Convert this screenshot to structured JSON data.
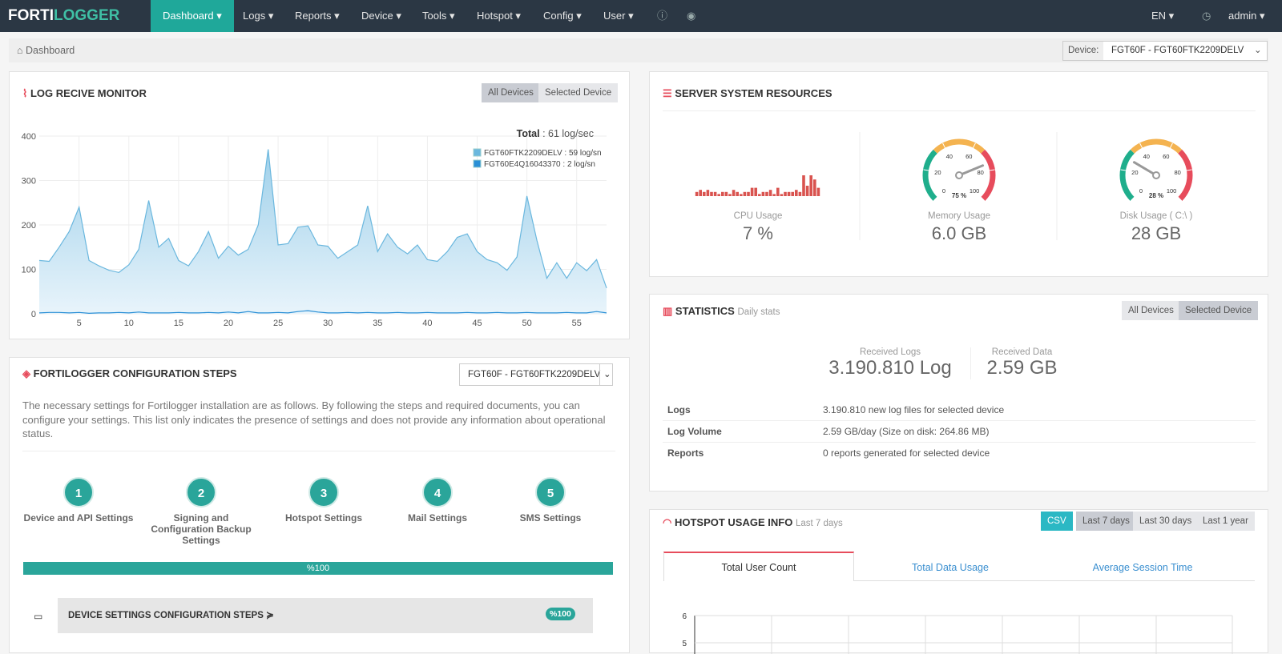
{
  "navbar": {
    "brand": [
      "FORTI",
      "LOGGER"
    ],
    "menu": [
      "Dashboard",
      "Logs",
      "Reports",
      "Device",
      "Tools",
      "Hotspot",
      "Config",
      "User"
    ],
    "language": "EN",
    "user": "admin"
  },
  "breadcrumb": "Dashboard",
  "device_filter": {
    "label": "Device:",
    "value": "FGT60F - FGT60FTK2209DELV"
  },
  "log_monitor": {
    "title": "LOG RECIVE MONITOR",
    "buttons": [
      "All Devices",
      "Selected Device"
    ],
    "total_label": "Total",
    "total_value": ": 61 log/sec",
    "chart_data": {
      "type": "area",
      "x": [
        1,
        2,
        3,
        4,
        5,
        6,
        7,
        8,
        9,
        10,
        11,
        12,
        13,
        14,
        15,
        16,
        17,
        18,
        19,
        20,
        21,
        22,
        23,
        24,
        25,
        26,
        27,
        28,
        29,
        30,
        31,
        32,
        33,
        34,
        35,
        36,
        37,
        38,
        39,
        40,
        41,
        42,
        43,
        44,
        45,
        46,
        47,
        48,
        49,
        50,
        51,
        52,
        53,
        54,
        55,
        56,
        57,
        58
      ],
      "series": [
        {
          "name": "FGT60FTK2209DELV : 59 log/sn",
          "color": "#6ab7de",
          "values": [
            120,
            118,
            150,
            185,
            240,
            120,
            108,
            98,
            93,
            110,
            145,
            255,
            150,
            170,
            120,
            108,
            140,
            185,
            125,
            152,
            132,
            145,
            200,
            370,
            155,
            158,
            195,
            198,
            155,
            152,
            125,
            140,
            155,
            243,
            140,
            180,
            150,
            135,
            155,
            122,
            118,
            140,
            172,
            180,
            140,
            122,
            115,
            98,
            128,
            265,
            165,
            80,
            115,
            80,
            115,
            97,
            122,
            58
          ]
        },
        {
          "name": "FGT60E4Q16043370 : 2 log/sn",
          "color": "#2a8fd6",
          "values": [
            2,
            3,
            3,
            2,
            3,
            1,
            2,
            2,
            3,
            2,
            4,
            2,
            2,
            2,
            3,
            2,
            2,
            3,
            2,
            4,
            2,
            5,
            2,
            2,
            3,
            2,
            5,
            7,
            4,
            2,
            2,
            3,
            2,
            3,
            2,
            2,
            3,
            2,
            2,
            3,
            2,
            2,
            2,
            3,
            2,
            2,
            3,
            2,
            2,
            3,
            2,
            2,
            2,
            3,
            2,
            2,
            5,
            2
          ]
        }
      ],
      "xlim": [
        1,
        58
      ],
      "xticks": [
        5,
        10,
        15,
        20,
        25,
        30,
        35,
        40,
        45,
        50,
        55
      ],
      "ylim": [
        0,
        400
      ],
      "yticks": [
        0,
        100,
        200,
        300,
        400
      ],
      "grid": true
    }
  },
  "system_resources": {
    "title": "SERVER SYSTEM RESOURCES",
    "cpu": {
      "chart_data": {
        "type": "bar",
        "values": [
          2,
          3,
          2,
          3,
          2,
          2,
          1,
          2,
          2,
          1,
          3,
          2,
          1,
          2,
          2,
          4,
          4,
          1,
          2,
          2,
          3,
          1,
          4,
          1,
          2,
          2,
          2,
          3,
          2,
          10,
          5,
          10,
          8,
          4
        ],
        "color": "#d9534f"
      },
      "label": "CPU Usage",
      "value": "7 %"
    },
    "memory": {
      "chart_data": {
        "type": "gauge",
        "value": 75,
        "value_label": "75 %",
        "lim": [
          0,
          100
        ],
        "ticks": [
          0,
          20,
          40,
          60,
          80,
          100
        ],
        "colors": [
          "#1fae8c",
          "#f4b350",
          "#e74c5c"
        ]
      },
      "label": "Memory Usage",
      "value": "6.0 GB"
    },
    "disk": {
      "chart_data": {
        "type": "gauge",
        "value": 28,
        "value_label": "28 %",
        "lim": [
          0,
          100
        ],
        "ticks": [
          0,
          20,
          40,
          60,
          80,
          100
        ],
        "colors": [
          "#1fae8c",
          "#f4b350",
          "#e74c5c"
        ]
      },
      "label": "Disk Usage ( C:\\ )",
      "value": "28 GB"
    }
  },
  "statistics": {
    "title": "STATISTICS",
    "subtitle": "Daily stats",
    "buttons": [
      "All Devices",
      "Selected Device"
    ],
    "kpis": [
      {
        "label": "Received Logs",
        "value": "3.190.810 Log"
      },
      {
        "label": "Received Data",
        "value": "2.59 GB"
      }
    ],
    "rows": [
      [
        "Logs",
        "3.190.810 new log files for selected device"
      ],
      [
        "Log Volume",
        "2.59 GB/day (Size on disk: 264.86 MB)"
      ],
      [
        "Reports",
        "0 reports generated for selected device"
      ]
    ]
  },
  "hotspot": {
    "title": "HOTSPOT USAGE INFO",
    "subtitle": "Last 7 days",
    "buttons": [
      "CSV",
      "Last 7 days",
      "Last 30 days",
      "Last 1 year"
    ],
    "tabs": [
      "Total User Count",
      "Total Data Usage",
      "Average Session Time"
    ],
    "chart_data": {
      "type": "line",
      "ylim": [
        0,
        6
      ],
      "yticks": [
        5,
        6
      ],
      "grid": true
    }
  },
  "config_steps": {
    "title": "FORTILOGGER CONFIGURATION STEPS",
    "device": "FGT60F - FGT60FTK2209DELV",
    "description": "The necessary settings for Fortilogger installation are as follows. By following the steps and required documents, you can configure your settings. This list only indicates the presence of settings and does not provide any information about operational status.",
    "steps": [
      {
        "number": "1",
        "label": "Device and API Settings"
      },
      {
        "number": "2",
        "label": "Signing and Configuration Backup Settings"
      },
      {
        "number": "3",
        "label": "Hotspot Settings"
      },
      {
        "number": "4",
        "label": "Mail Settings"
      },
      {
        "number": "5",
        "label": "SMS Settings"
      }
    ],
    "progress": {
      "value": 100,
      "label": "%100"
    },
    "section": {
      "title": "DEVICE SETTINGS CONFIGURATION STEPS",
      "badge": "%100"
    }
  }
}
